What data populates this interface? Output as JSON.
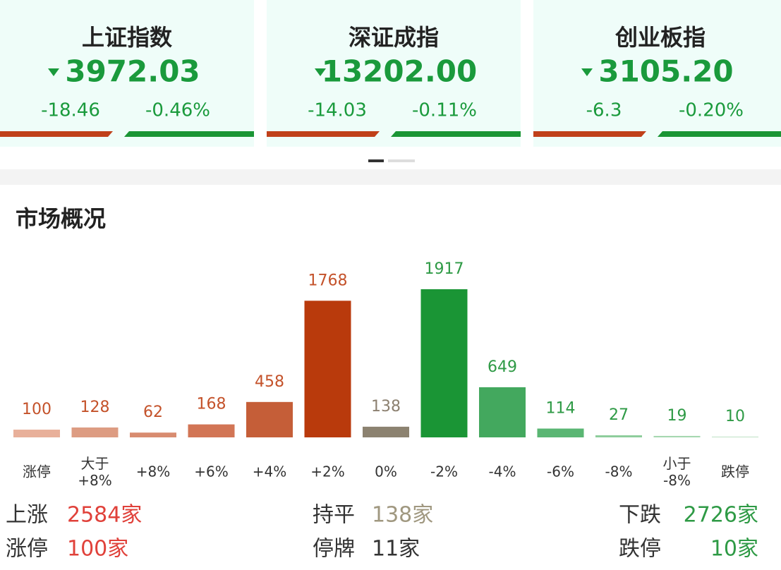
{
  "indices": [
    {
      "name": "上证指数",
      "value": "3972.03",
      "change": "-18.46",
      "percent": "-0.46%"
    },
    {
      "name": "深证成指",
      "value": "13202.00",
      "change": "-14.03",
      "percent": "-0.11%"
    },
    {
      "name": "创业板指",
      "value": "3105.20",
      "change": "-6.3",
      "percent": "-0.20%"
    }
  ],
  "section_title": "市场概况",
  "chart_data": {
    "type": "bar",
    "categories": [
      "涨停",
      "大于\n+8%",
      "+8%",
      "+6%",
      "+4%",
      "+2%",
      "0%",
      "-2%",
      "-4%",
      "-6%",
      "-8%",
      "小于\n-8%",
      "跌停"
    ],
    "values": [
      100,
      128,
      62,
      168,
      458,
      1768,
      138,
      1917,
      649,
      114,
      27,
      19,
      10
    ],
    "colors": [
      "#e8b09a",
      "#dd9c82",
      "#d88c70",
      "#d27555",
      "#c55e38",
      "#b93a0c",
      "#8c8270",
      "#1a9535",
      "#43a85e",
      "#5ab673",
      "#8dcd9b",
      "#a5d7b0",
      "#c2e3c8"
    ]
  },
  "summary": {
    "rows": [
      [
        {
          "label": "上涨",
          "value": "2584家"
        },
        {
          "label": "持平",
          "value": "138家"
        },
        {
          "label": "下跌",
          "value": "2726家"
        }
      ],
      [
        {
          "label": "涨停",
          "value": "100家"
        },
        {
          "label": "停牌",
          "value": "11家"
        },
        {
          "label": "跌停",
          "value": "10家"
        }
      ]
    ]
  }
}
